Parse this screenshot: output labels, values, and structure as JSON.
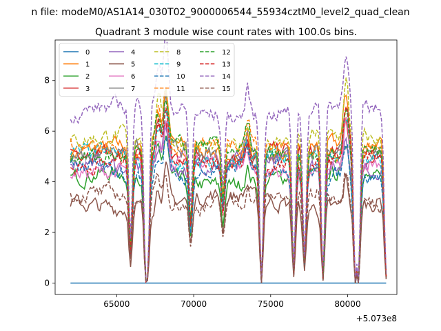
{
  "suptitle": "n file: modeM0/AS1A14_030T02_9000006544_55934cztM0_level2_quad_clean",
  "chart_data": {
    "type": "line",
    "title": "Quadrant 3 module wise count rates with 100.0s bins.",
    "xlabel": "",
    "ylabel": "",
    "x_offset_label": "+5.073e8",
    "xlim": [
      61000,
      83200
    ],
    "ylim": [
      -0.45,
      9.6
    ],
    "xticks": [
      65000,
      70000,
      75000,
      80000
    ],
    "xtick_labels": [
      "65000",
      "70000",
      "75000",
      "80000"
    ],
    "yticks": [
      0,
      2,
      4,
      6,
      8
    ],
    "ytick_labels": [
      "0",
      "2",
      "4",
      "6",
      "8"
    ],
    "grid": false,
    "legend_position": "top-left",
    "legend_columns": 4,
    "x_start": 62000,
    "x_end": 82500,
    "x_step": 100,
    "series": [
      {
        "name": "0",
        "color": "#1f77b4",
        "dash": "solid",
        "level": 0.0
      },
      {
        "name": "1",
        "color": "#ff7f0e",
        "dash": "solid",
        "level": 5.3
      },
      {
        "name": "2",
        "color": "#2ca02c",
        "dash": "solid",
        "level": 4.1
      },
      {
        "name": "3",
        "color": "#d62728",
        "dash": "solid",
        "level": 5.0
      },
      {
        "name": "4",
        "color": "#9467bd",
        "dash": "solid",
        "level": 4.7
      },
      {
        "name": "5",
        "color": "#8c564b",
        "dash": "solid",
        "level": 3.2
      },
      {
        "name": "6",
        "color": "#e377c2",
        "dash": "solid",
        "level": 4.6
      },
      {
        "name": "7",
        "color": "#7f7f7f",
        "dash": "solid",
        "level": 5.1
      },
      {
        "name": "8",
        "color": "#bcbd22",
        "dash": "dashed",
        "level": 5.6
      },
      {
        "name": "9",
        "color": "#17becf",
        "dash": "dashed",
        "level": 4.9
      },
      {
        "name": "10",
        "color": "#1f77b4",
        "dash": "dashed",
        "level": 4.4
      },
      {
        "name": "11",
        "color": "#ff7f0e",
        "dash": "dashed",
        "level": 5.4
      },
      {
        "name": "12",
        "color": "#2ca02c",
        "dash": "dashed",
        "level": 5.2
      },
      {
        "name": "13",
        "color": "#d62728",
        "dash": "dashed",
        "level": 4.8
      },
      {
        "name": "14",
        "color": "#9467bd",
        "dash": "dashed",
        "level": 6.8
      },
      {
        "name": "15",
        "color": "#8c564b",
        "dash": "dashed",
        "level": 3.3
      }
    ],
    "dips": [
      {
        "x": 65900,
        "depth": 0.75
      },
      {
        "x": 66900,
        "depth": 0.97
      },
      {
        "x": 67000,
        "depth": 0.9
      },
      {
        "x": 69800,
        "depth": 0.55
      },
      {
        "x": 71900,
        "depth": 0.4
      },
      {
        "x": 74400,
        "depth": 1.0
      },
      {
        "x": 76500,
        "depth": 0.92
      },
      {
        "x": 77200,
        "depth": 0.85
      },
      {
        "x": 78400,
        "depth": 0.97
      },
      {
        "x": 80500,
        "depth": 1.0
      },
      {
        "x": 80700,
        "depth": 1.0
      },
      {
        "x": 82500,
        "depth": 0.95
      }
    ],
    "peaks": [
      {
        "x": 67700,
        "gain": 1.25
      },
      {
        "x": 68200,
        "gain": 1.4
      },
      {
        "x": 73500,
        "gain": 1.15
      },
      {
        "x": 79900,
        "gain": 1.35
      }
    ]
  }
}
